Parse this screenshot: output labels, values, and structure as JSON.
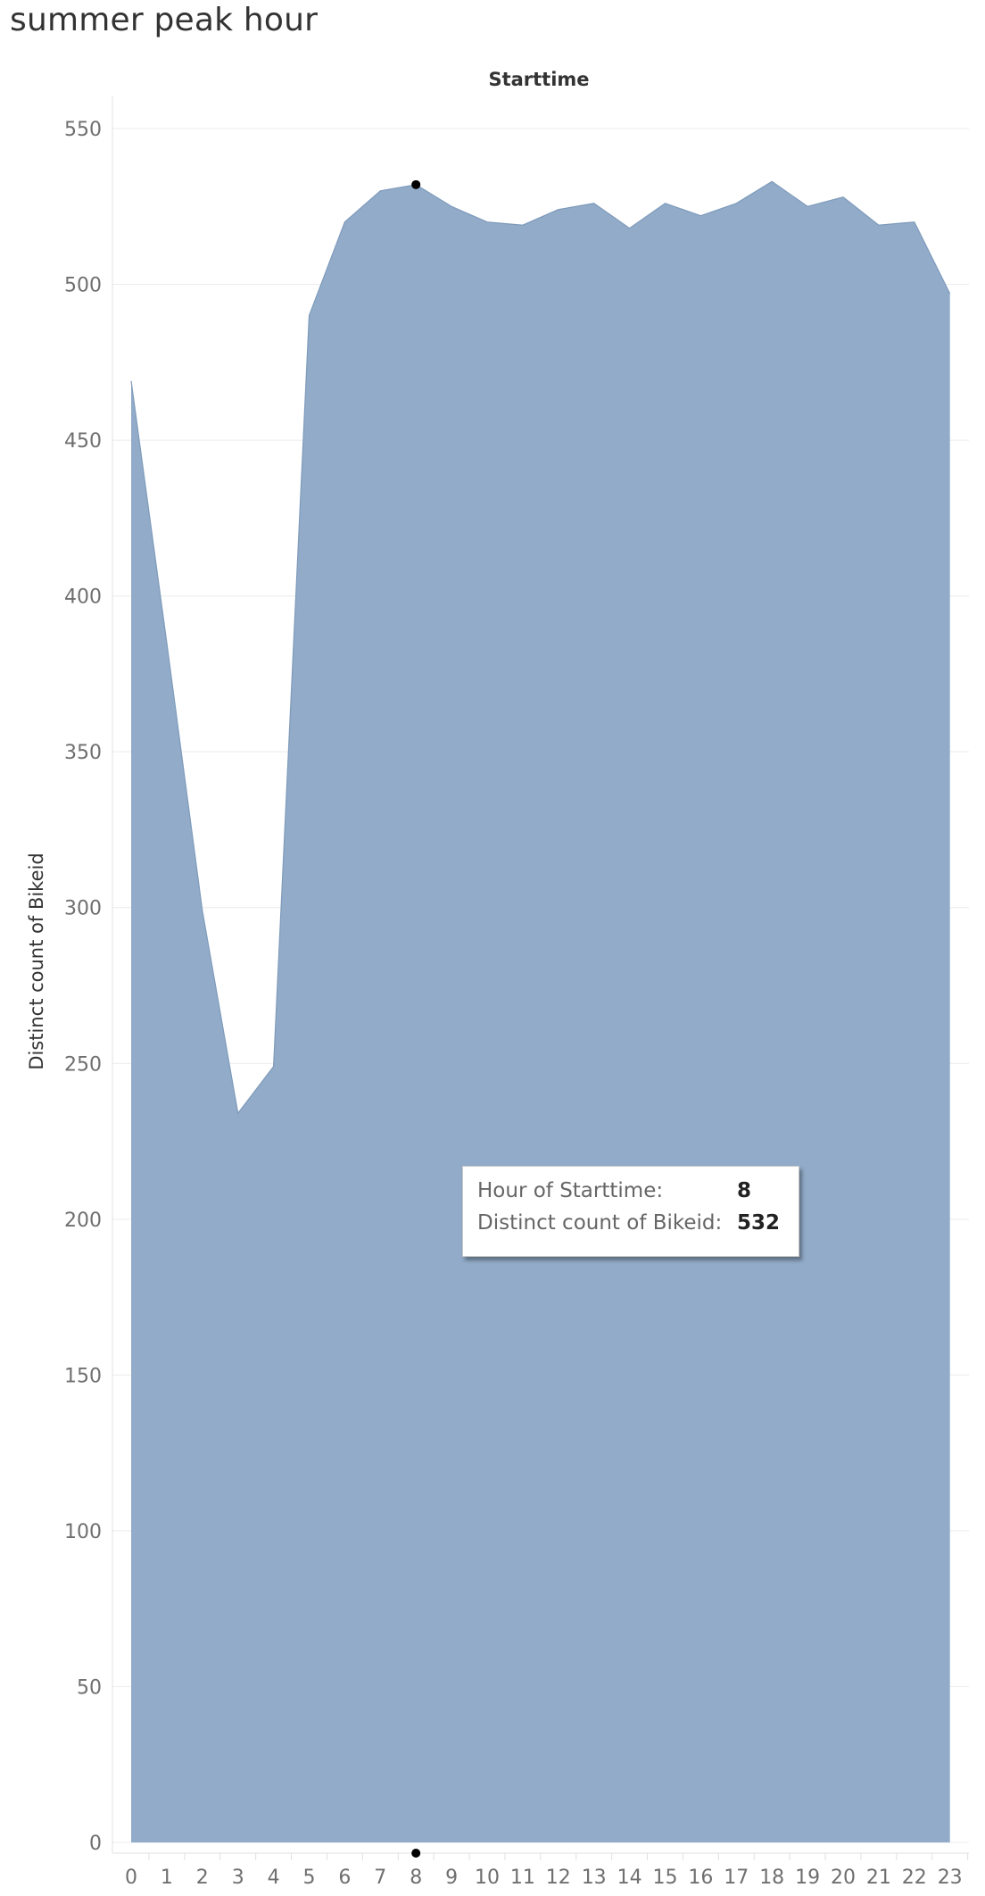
{
  "page": {
    "title": "summer peak hour"
  },
  "chart_data": {
    "type": "area",
    "title": "summer peak hour",
    "column_header": "Starttime",
    "xlabel": "",
    "ylabel": "Distinct count of Bikeid",
    "x": [
      0,
      1,
      2,
      3,
      4,
      5,
      6,
      7,
      8,
      9,
      10,
      11,
      12,
      13,
      14,
      15,
      16,
      17,
      18,
      19,
      20,
      21,
      22,
      23
    ],
    "series": [
      {
        "values": [
          469,
          385,
          299,
          234,
          249,
          490,
          520,
          530,
          532,
          525,
          520,
          519,
          524,
          526,
          518,
          526,
          522,
          526,
          533,
          525,
          528,
          519,
          520,
          497
        ]
      }
    ],
    "y_ticks": [
      0,
      50,
      100,
      150,
      200,
      250,
      300,
      350,
      400,
      450,
      500,
      550
    ],
    "ylim": [
      0,
      550
    ],
    "grid": true,
    "fill_color": "#91abc8",
    "line_color": "#7f9bbb",
    "highlight_x": 8
  },
  "tooltip": {
    "label_hour": "Hour of Starttime:",
    "value_hour": "8",
    "label_count": "Distinct count of Bikeid:",
    "value_count": "532"
  }
}
